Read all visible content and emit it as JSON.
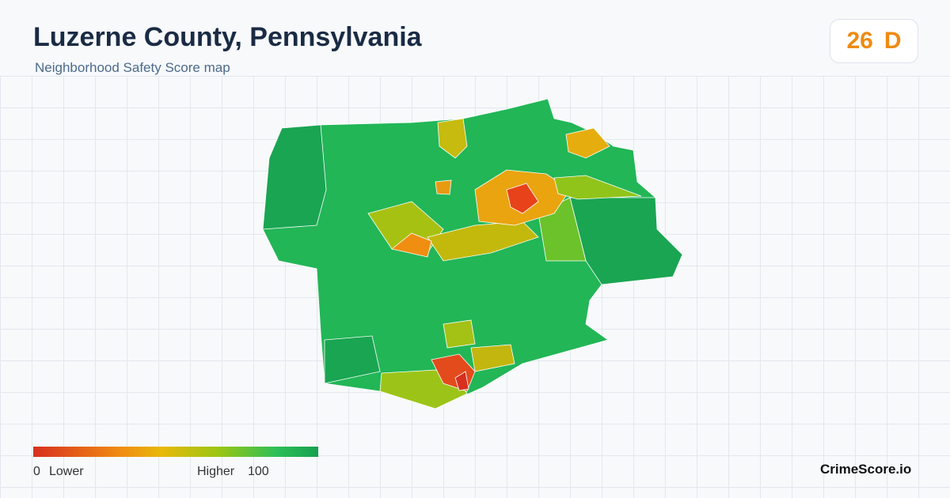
{
  "header": {
    "title": "Luzerne County, Pennsylvania",
    "subtitle": "Neighborhood Safety Score map"
  },
  "badge": {
    "score": "26",
    "grade": "D"
  },
  "legend": {
    "min": "0",
    "min_label": "Lower",
    "max_label": "Higher",
    "max": "100"
  },
  "brand": "CrimeScore.io"
}
